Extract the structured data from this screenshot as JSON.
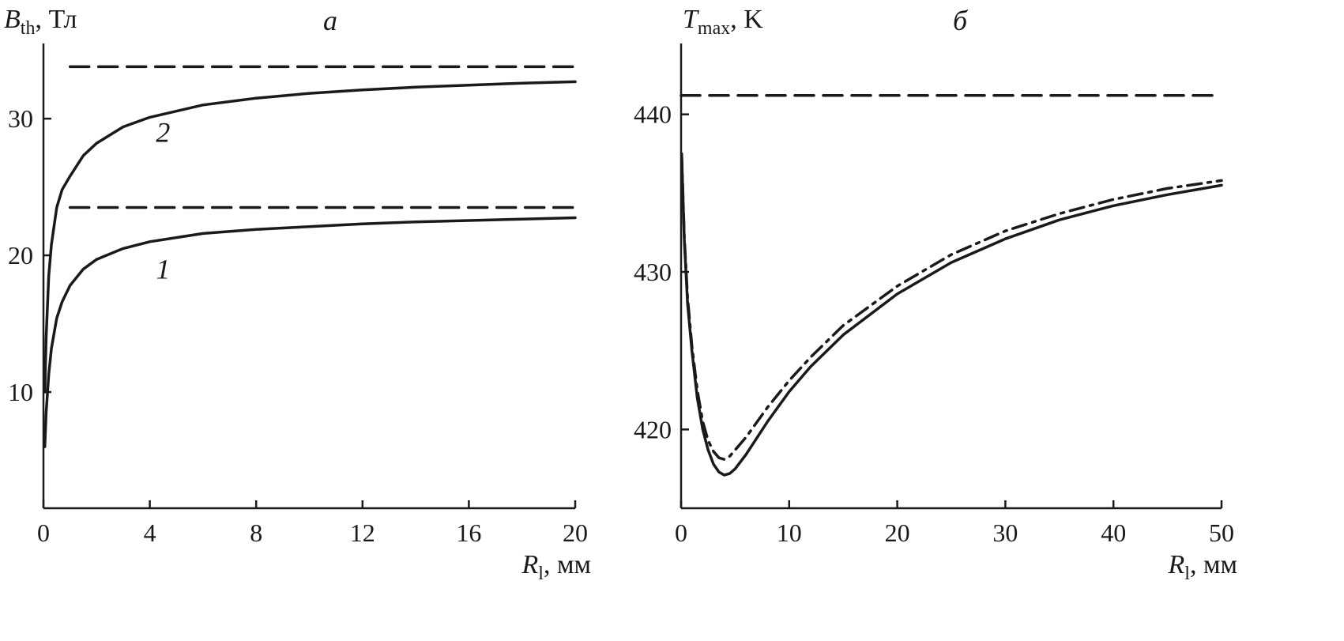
{
  "chart_data": [
    {
      "type": "line",
      "panel_label": "а",
      "ylabel_main": "B",
      "ylabel_sub": "th",
      "ylabel_unit": ", Тл",
      "xlabel_main": "R",
      "xlabel_sub": "l",
      "xlabel_unit": ", мм",
      "xlim": [
        0,
        20
      ],
      "ylim": [
        1.5,
        35.5
      ],
      "xticks": [
        0,
        4,
        8,
        12,
        16,
        20
      ],
      "yticks": [
        10,
        20,
        30
      ],
      "grid": false,
      "series": [
        {
          "name": "1",
          "style": "solid",
          "x": [
            0.05,
            0.1,
            0.2,
            0.3,
            0.5,
            0.7,
            1,
            1.5,
            2,
            3,
            4,
            6,
            8,
            10,
            12,
            14,
            16,
            18,
            20
          ],
          "y": [
            6,
            8.5,
            11.3,
            13.2,
            15.4,
            16.6,
            17.8,
            19.0,
            19.7,
            20.5,
            21.0,
            21.6,
            21.9,
            22.1,
            22.3,
            22.45,
            22.55,
            22.65,
            22.75
          ]
        },
        {
          "name": "2",
          "style": "solid",
          "x": [
            0.05,
            0.1,
            0.2,
            0.3,
            0.5,
            0.7,
            1,
            1.5,
            2,
            3,
            4,
            6,
            8,
            10,
            12,
            14,
            16,
            18,
            20
          ],
          "y": [
            10,
            14,
            18.5,
            20.8,
            23.5,
            24.8,
            25.8,
            27.3,
            28.2,
            29.4,
            30.1,
            31.0,
            31.5,
            31.85,
            32.1,
            32.3,
            32.45,
            32.6,
            32.7
          ]
        },
        {
          "style": "dashed",
          "x": [
            1,
            20
          ],
          "y": [
            23.5,
            23.5
          ]
        },
        {
          "style": "dashed",
          "x": [
            1,
            20
          ],
          "y": [
            33.8,
            33.8
          ]
        }
      ],
      "annotations": [
        {
          "text": "1",
          "x": 4.5,
          "y": 19
        },
        {
          "text": "2",
          "x": 4.5,
          "y": 29
        }
      ]
    },
    {
      "type": "line",
      "panel_label": "б",
      "ylabel_main": "T",
      "ylabel_sub": "max",
      "ylabel_unit": ", K",
      "xlabel_main": "R",
      "xlabel_sub": "l",
      "xlabel_unit": ", мм",
      "xlim": [
        0,
        50
      ],
      "ylim": [
        415,
        444.5
      ],
      "xticks": [
        0,
        10,
        20,
        30,
        40,
        50
      ],
      "yticks": [
        420,
        430,
        440
      ],
      "grid": false,
      "series": [
        {
          "style": "solid",
          "x": [
            0.05,
            0.3,
            0.6,
            1,
            1.5,
            2,
            2.5,
            3,
            3.5,
            4,
            4.5,
            5,
            6,
            8,
            10,
            12,
            15,
            20,
            25,
            30,
            35,
            40,
            45,
            50
          ],
          "y": [
            437.5,
            432,
            428,
            425,
            422,
            420,
            418.7,
            417.8,
            417.3,
            417.1,
            417.2,
            417.5,
            418.4,
            420.5,
            422.4,
            424.0,
            426.0,
            428.6,
            430.6,
            432.1,
            433.3,
            434.2,
            434.9,
            435.5
          ]
        },
        {
          "style": "dashdot",
          "x": [
            0.05,
            0.3,
            0.6,
            1,
            1.5,
            2,
            2.5,
            3,
            3.5,
            4,
            4.5,
            5,
            6,
            8,
            10,
            12,
            15,
            20,
            25,
            30,
            35,
            40,
            45,
            50
          ],
          "y": [
            437.5,
            432.2,
            428.4,
            425.3,
            422.5,
            420.5,
            419.3,
            418.6,
            418.2,
            418.1,
            418.3,
            418.7,
            419.5,
            421.4,
            423.1,
            424.6,
            426.6,
            429.1,
            431.1,
            432.6,
            433.7,
            434.6,
            435.3,
            435.8
          ]
        },
        {
          "style": "dashed",
          "x": [
            0,
            50
          ],
          "y": [
            441.2,
            441.2
          ]
        }
      ]
    }
  ],
  "colors": {
    "ink": "#1a1a1a",
    "background": "#ffffff"
  }
}
